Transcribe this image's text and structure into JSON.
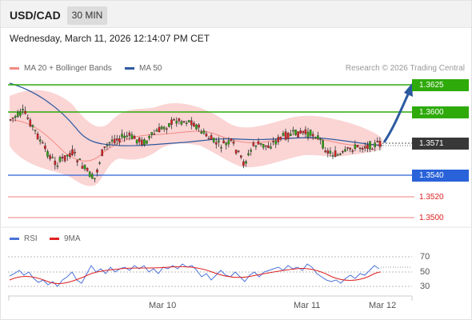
{
  "header": {
    "symbol": "USD/CAD",
    "timeframe": "30 MIN"
  },
  "datetime": "Wednesday, March 11, 2026 12:14:07 PM CET",
  "legend": {
    "bollinger": {
      "label": "MA 20 + Bollinger Bands",
      "color": "#f28b82"
    },
    "ma50": {
      "label": "MA 50",
      "color": "#2c5aa0"
    }
  },
  "credit": "Research © 2026 Trading Central",
  "levels": [
    {
      "value": "1.3625",
      "style": "green"
    },
    {
      "value": "1.3600",
      "style": "green"
    },
    {
      "value": "1.3571",
      "style": "dark"
    },
    {
      "value": "1.3540",
      "style": "blue"
    },
    {
      "value": "1.3520",
      "style": "red"
    },
    {
      "value": "1.3500",
      "style": "red"
    }
  ],
  "rsi_legend": {
    "rsi": {
      "label": "RSI",
      "color": "#4a72d8"
    },
    "ma9": {
      "label": "9MA",
      "color": "#e02020"
    }
  },
  "rsi_ticks": [
    "70",
    "50",
    "30"
  ],
  "x_labels": [
    "Mar 10",
    "Mar 11",
    "Mar 12"
  ],
  "colors": {
    "up": "#2eaa0a",
    "down": "#e02020",
    "candle": "#333333",
    "band": "#fbd4d4"
  }
}
